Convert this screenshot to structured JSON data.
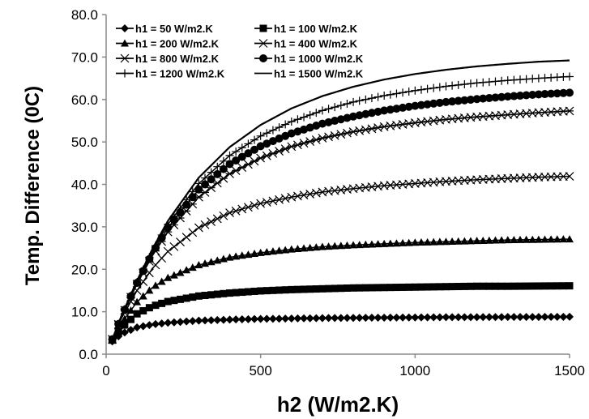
{
  "chart_data": {
    "type": "line",
    "title": "",
    "xlabel": "h2 (W/m2.K)",
    "ylabel": "Temp. Difference (0C)",
    "xlim": [
      0,
      1500
    ],
    "ylim": [
      0,
      80
    ],
    "x_ticks": [
      "0",
      "500",
      "1000",
      "1500"
    ],
    "y_ticks": [
      "0.0",
      "10.0",
      "20.0",
      "30.0",
      "40.0",
      "50.0",
      "60.0",
      "70.0",
      "80.0"
    ],
    "grid": false,
    "legend_position": "top-left",
    "x": [
      20,
      50,
      100,
      150,
      200,
      300,
      400,
      500,
      600,
      700,
      800,
      900,
      1000,
      1100,
      1200,
      1300,
      1400,
      1500
    ],
    "series": [
      {
        "name": "h1 = 50 W/m2.K",
        "marker": "diamond",
        "values": [
          3.0,
          4.8,
          6.3,
          7.0,
          7.4,
          7.9,
          8.15,
          8.3,
          8.4,
          8.5,
          8.55,
          8.6,
          8.65,
          8.7,
          8.72,
          8.75,
          8.77,
          8.8
        ]
      },
      {
        "name": "h1 = 100 W/m2.K",
        "marker": "square",
        "values": [
          3.3,
          6.2,
          9.5,
          11.3,
          12.4,
          13.7,
          14.4,
          14.9,
          15.2,
          15.4,
          15.6,
          15.7,
          15.8,
          15.9,
          16.0,
          16.0,
          16.05,
          16.1
        ]
      },
      {
        "name": "h1 = 200 W/m2.K",
        "marker": "triangle",
        "values": [
          3.4,
          7.3,
          12.3,
          15.7,
          18.0,
          21.0,
          22.8,
          23.9,
          24.7,
          25.3,
          25.7,
          26.0,
          26.3,
          26.5,
          26.7,
          26.9,
          27.0,
          27.1
        ]
      },
      {
        "name": "h1 = 400 W/m2.K",
        "marker": "x",
        "values": [
          3.5,
          8.5,
          15.0,
          20.2,
          24.2,
          29.8,
          33.3,
          35.5,
          37.0,
          38.2,
          39.0,
          39.7,
          40.2,
          40.7,
          41.1,
          41.4,
          41.7,
          41.9
        ]
      },
      {
        "name": "h1 = 800 W/m2.K",
        "marker": "asterisk",
        "values": [
          3.5,
          8.8,
          16.5,
          23.2,
          28.8,
          37.0,
          42.5,
          46.2,
          48.9,
          50.9,
          52.4,
          53.6,
          54.5,
          55.3,
          55.9,
          56.4,
          56.9,
          57.3
        ]
      },
      {
        "name": "h1 = 1000 W/m2.K",
        "marker": "circle",
        "values": [
          3.5,
          8.9,
          16.8,
          23.8,
          29.8,
          38.8,
          44.8,
          49.0,
          52.0,
          54.3,
          56.0,
          57.4,
          58.5,
          59.4,
          60.1,
          60.7,
          61.2,
          61.6
        ]
      },
      {
        "name": "h1 = 1200 W/m2.K",
        "marker": "plus",
        "values": [
          3.5,
          9.0,
          17.0,
          24.3,
          30.6,
          40.2,
          46.8,
          51.4,
          54.8,
          57.4,
          59.4,
          60.9,
          62.1,
          63.1,
          63.9,
          64.5,
          65.0,
          65.4
        ]
      },
      {
        "name": "h1 = 1500 W/m2.K",
        "marker": "none",
        "values": [
          3.5,
          9.1,
          17.3,
          24.8,
          31.4,
          41.6,
          48.8,
          54.0,
          57.9,
          60.8,
          63.0,
          64.7,
          66.0,
          67.0,
          67.8,
          68.4,
          68.9,
          69.2
        ]
      }
    ]
  }
}
